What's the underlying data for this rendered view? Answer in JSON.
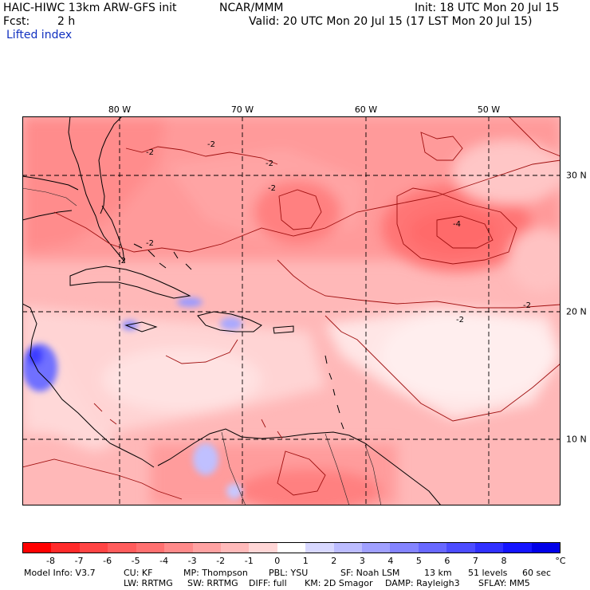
{
  "header": {
    "model": "HAIC-HIWC 13km ARW-GFS init",
    "center": "NCAR/MMM",
    "init": "Init: 18 UTC Mon 20 Jul 15",
    "fcst_label": "Fcst:",
    "fcst_value": "2 h",
    "valid": "Valid: 20 UTC Mon 20 Jul 15 (17 LST Mon 20 Jul 15)",
    "field": "Lifted index"
  },
  "map": {
    "lon_labels": [
      "80 W",
      "70 W",
      "60 W",
      "50 W"
    ],
    "lat_labels": [
      "30 N",
      "20 N",
      "10 N"
    ],
    "contour_labels": [
      "-2",
      "-2",
      "-2",
      "-2",
      "-2",
      "-2",
      "-4",
      "-2",
      "-2"
    ]
  },
  "colorbar": {
    "colors": [
      "#ff0000",
      "#ff2a2a",
      "#ff4444",
      "#ff5c5c",
      "#ff7070",
      "#ff8a8a",
      "#ffa2a2",
      "#ffbaba",
      "#ffd6d6",
      "#ffffff",
      "#d8d8ff",
      "#bcbcff",
      "#a0a0ff",
      "#8484ff",
      "#6868ff",
      "#4c4cff",
      "#3030ff",
      "#1414ff",
      "#0000e8"
    ],
    "ticks": [
      "-8",
      "-7",
      "-6",
      "-5",
      "-4",
      "-3",
      "-2",
      "-1",
      "0",
      "1",
      "2",
      "3",
      "4",
      "5",
      "6",
      "7",
      "8"
    ],
    "unit": "°C"
  },
  "model_info": {
    "line1": [
      "Model Info: V3.7",
      "CU: KF",
      "MP: Thompson",
      "PBL: YSU",
      "SF: Noah LSM",
      "13 km",
      "51 levels",
      "60 sec"
    ],
    "line2": [
      "LW: RRTMG",
      "SW: RRTMG",
      "DIFF: full",
      "KM: 2D Smagor",
      "DAMP: Rayleigh3",
      "SFLAY: MM5"
    ]
  }
}
